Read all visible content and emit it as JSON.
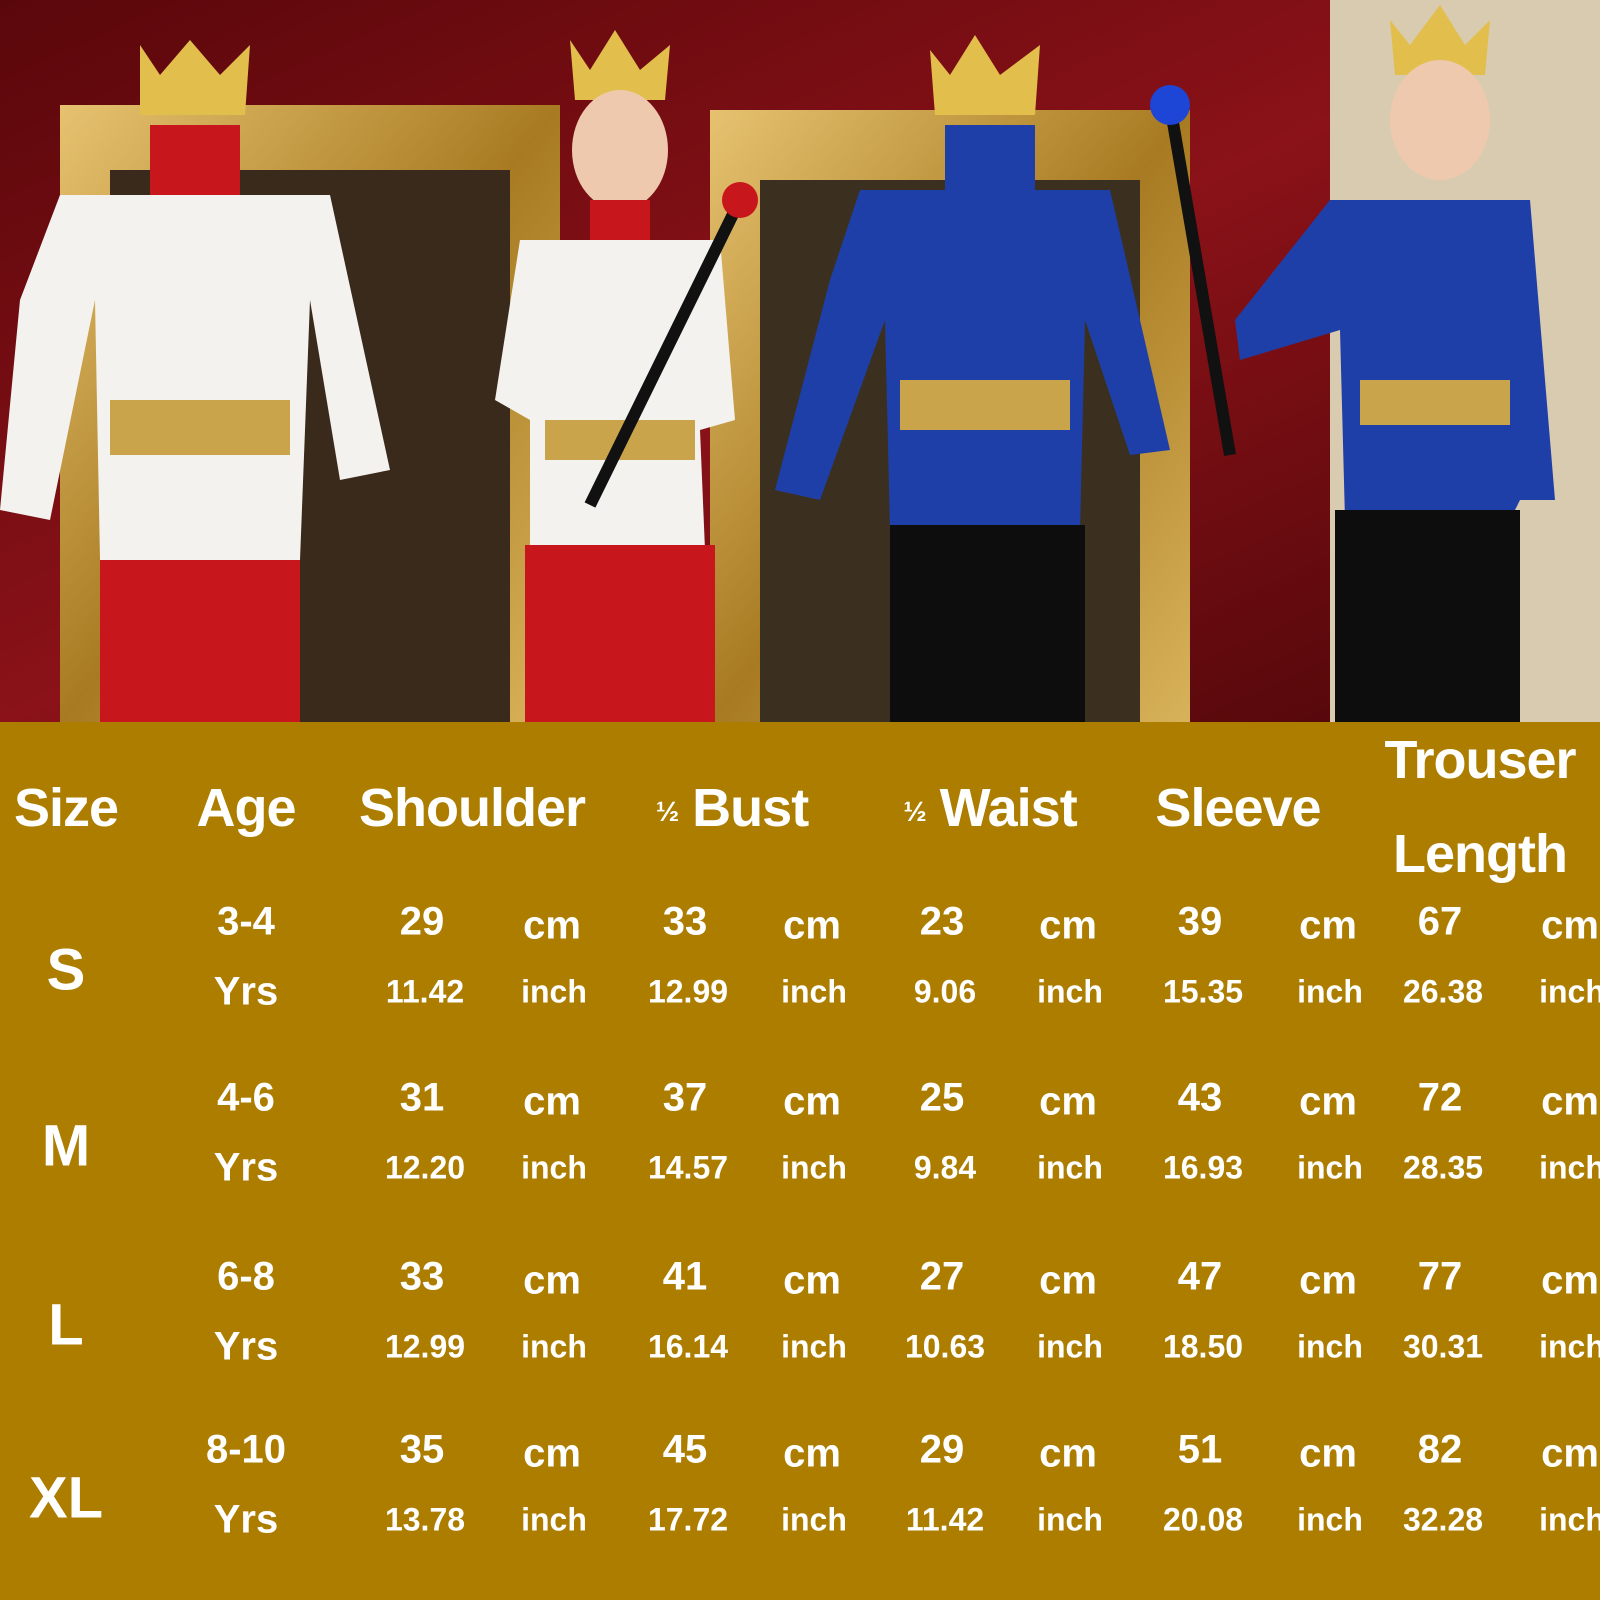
{
  "colors": {
    "background": "#AD7D00",
    "text": "#FFFFFF",
    "wall": "#7A0F14",
    "frame": "#B8902F",
    "royal_blue": "#1F3FA8",
    "red": "#C8161D"
  },
  "photo": {
    "subjects": [
      "white-red prince costume on mannequin",
      "boy in white-red prince costume with scepter",
      "blue prince costume on mannequin",
      "boy in blue prince costume with scepter"
    ]
  },
  "table": {
    "headers": {
      "size": "Size",
      "age": "Age",
      "shoulder": "Shoulder",
      "half": "½",
      "bust": "Bust",
      "waist": "Waist",
      "sleeve": "Sleeve",
      "trouser_1": "Trouser",
      "trouser_2": "Length"
    },
    "units": {
      "cm": "cm",
      "inch": "inch"
    },
    "rows": [
      {
        "size": "S",
        "age": "3-4",
        "yrs": "Yrs",
        "shoulder_cm": "29",
        "shoulder_in": "11.42",
        "bust_cm": "33",
        "bust_in": "12.99",
        "waist_cm": "23",
        "waist_in": "9.06",
        "sleeve_cm": "39",
        "sleeve_in": "15.35",
        "trouser_cm": "67",
        "trouser_in": "26.38"
      },
      {
        "size": "M",
        "age": "4-6",
        "yrs": "Yrs",
        "shoulder_cm": "31",
        "shoulder_in": "12.20",
        "bust_cm": "37",
        "bust_in": "14.57",
        "waist_cm": "25",
        "waist_in": "9.84",
        "sleeve_cm": "43",
        "sleeve_in": "16.93",
        "trouser_cm": "72",
        "trouser_in": "28.35"
      },
      {
        "size": "L",
        "age": "6-8",
        "yrs": "Yrs",
        "shoulder_cm": "33",
        "shoulder_in": "12.99",
        "bust_cm": "41",
        "bust_in": "16.14",
        "waist_cm": "27",
        "waist_in": "10.63",
        "sleeve_cm": "47",
        "sleeve_in": "18.50",
        "trouser_cm": "77",
        "trouser_in": "30.31"
      },
      {
        "size": "XL",
        "age": "8-10",
        "yrs": "Yrs",
        "shoulder_cm": "35",
        "shoulder_in": "13.78",
        "bust_cm": "45",
        "bust_in": "17.72",
        "waist_cm": "29",
        "waist_in": "11.42",
        "sleeve_cm": "51",
        "sleeve_in": "20.08",
        "trouser_cm": "82",
        "trouser_in": "32.28"
      }
    ]
  }
}
